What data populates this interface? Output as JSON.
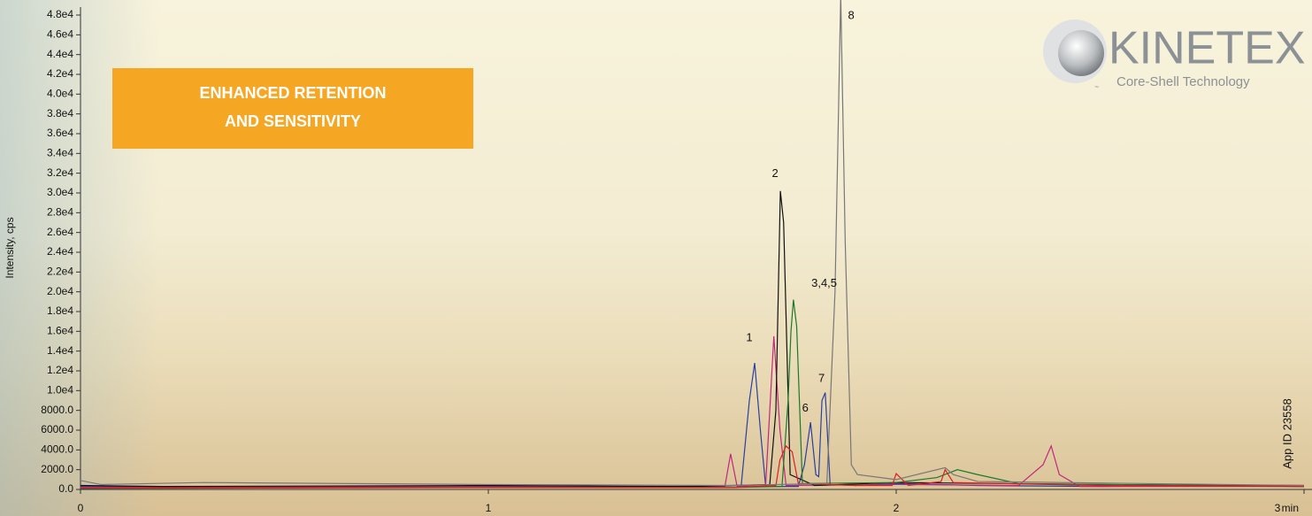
{
  "chart_data": {
    "type": "line",
    "ylabel": "Intensity, cps",
    "xlabel": "min",
    "banner": [
      "ENHANCED RETENTION",
      "AND SENSITIVITY"
    ],
    "logo": {
      "name": "KINETEX",
      "tagline": "Core-Shell Technology",
      "mark": "™"
    },
    "app_id": "App ID 23558",
    "annotations": [
      "1",
      "2",
      "3,4,5",
      "6",
      "7",
      "8"
    ],
    "xlim": [
      0,
      3
    ],
    "xticks": [
      0,
      1,
      2,
      3
    ],
    "ylim": [
      0,
      48000
    ],
    "yticks": [
      {
        "value": 0,
        "label": "0.0"
      },
      {
        "value": 2000,
        "label": "2000.0"
      },
      {
        "value": 4000,
        "label": "4000.0"
      },
      {
        "value": 6000,
        "label": "6000.0"
      },
      {
        "value": 8000,
        "label": "8000.0"
      },
      {
        "value": 10000,
        "label": "1.0e4"
      },
      {
        "value": 12000,
        "label": "1.2e4"
      },
      {
        "value": 14000,
        "label": "1.4e4"
      },
      {
        "value": 16000,
        "label": "1.6e4"
      },
      {
        "value": 18000,
        "label": "1.8e4"
      },
      {
        "value": 20000,
        "label": "2.0e4"
      },
      {
        "value": 22000,
        "label": "2.2e4"
      },
      {
        "value": 24000,
        "label": "2.4e4"
      },
      {
        "value": 26000,
        "label": "2.6e4"
      },
      {
        "value": 28000,
        "label": "2.8e4"
      },
      {
        "value": 30000,
        "label": "3.0e4"
      },
      {
        "value": 32000,
        "label": "3.2e4"
      },
      {
        "value": 34000,
        "label": "3.4e4"
      },
      {
        "value": 36000,
        "label": "3.6e4"
      },
      {
        "value": 38000,
        "label": "3.8e4"
      },
      {
        "value": 40000,
        "label": "4.0e4"
      },
      {
        "value": 42000,
        "label": "4.2e4"
      },
      {
        "value": 44000,
        "label": "4.4e4"
      },
      {
        "value": 46000,
        "label": "4.6e4"
      },
      {
        "value": 48000,
        "label": "4.8e4"
      }
    ],
    "series": [
      {
        "color": "#2b3f9e",
        "x": [
          0,
          0.5,
          1,
          1.5,
          1.62,
          1.64,
          1.653,
          1.667,
          1.68,
          1.76,
          1.775,
          1.79,
          1.803,
          1.81,
          1.818,
          1.826,
          1.838,
          1.9,
          2,
          2.2,
          2.5,
          2.8,
          3
        ],
        "values": [
          300,
          200,
          300,
          300,
          400,
          9000,
          12800,
          6000,
          300,
          300,
          2500,
          6800,
          1500,
          1300,
          9000,
          9800,
          500,
          400,
          600,
          400,
          300,
          400,
          300
        ]
      },
      {
        "color": "#c0287a",
        "x": [
          0,
          0.8,
          1.5,
          1.58,
          1.594,
          1.61,
          1.68,
          1.69,
          1.7,
          1.715,
          1.73,
          2,
          2.3,
          2.36,
          2.38,
          2.4,
          2.45,
          3
        ],
        "values": [
          200,
          300,
          200,
          300,
          3600,
          300,
          500,
          8000,
          15500,
          6000,
          400,
          500,
          400,
          2500,
          4400,
          1500,
          300,
          300
        ]
      },
      {
        "color": "#111111",
        "x": [
          0,
          0.2,
          1,
          1.5,
          1.69,
          1.705,
          1.716,
          1.724,
          1.74,
          1.8,
          2,
          2.5,
          3
        ],
        "values": [
          400,
          300,
          400,
          300,
          500,
          8000,
          30200,
          27000,
          1500,
          400,
          700,
          500,
          400
        ]
      },
      {
        "color": "#1a7a2a",
        "x": [
          0,
          1,
          1.6,
          1.72,
          1.735,
          1.742,
          1.748,
          1.756,
          1.77,
          2,
          2.1,
          2.15,
          2.2,
          2.3,
          3
        ],
        "values": [
          100,
          200,
          200,
          300,
          9000,
          16000,
          19200,
          16500,
          600,
          700,
          1200,
          2000,
          1500,
          600,
          300
        ]
      },
      {
        "color": "#d92020",
        "x": [
          0,
          1,
          1.6,
          1.705,
          1.715,
          1.73,
          1.745,
          1.76,
          1.9,
          1.99,
          2,
          2.03,
          2.11,
          2.12,
          2.14,
          2.5,
          3
        ],
        "values": [
          150,
          200,
          200,
          400,
          3000,
          4400,
          3800,
          600,
          400,
          400,
          1600,
          400,
          800,
          2000,
          700,
          400,
          300
        ]
      },
      {
        "color": "#777777",
        "x": [
          0,
          0.05,
          0.3,
          1,
          1.6,
          1.83,
          1.85,
          1.864,
          1.875,
          1.89,
          1.905,
          2,
          2.12,
          2.14,
          2.2,
          3
        ],
        "values": [
          900,
          500,
          700,
          500,
          400,
          600,
          20000,
          50000,
          25000,
          2500,
          1500,
          1000,
          2200,
          1500,
          800,
          400
        ]
      }
    ]
  }
}
